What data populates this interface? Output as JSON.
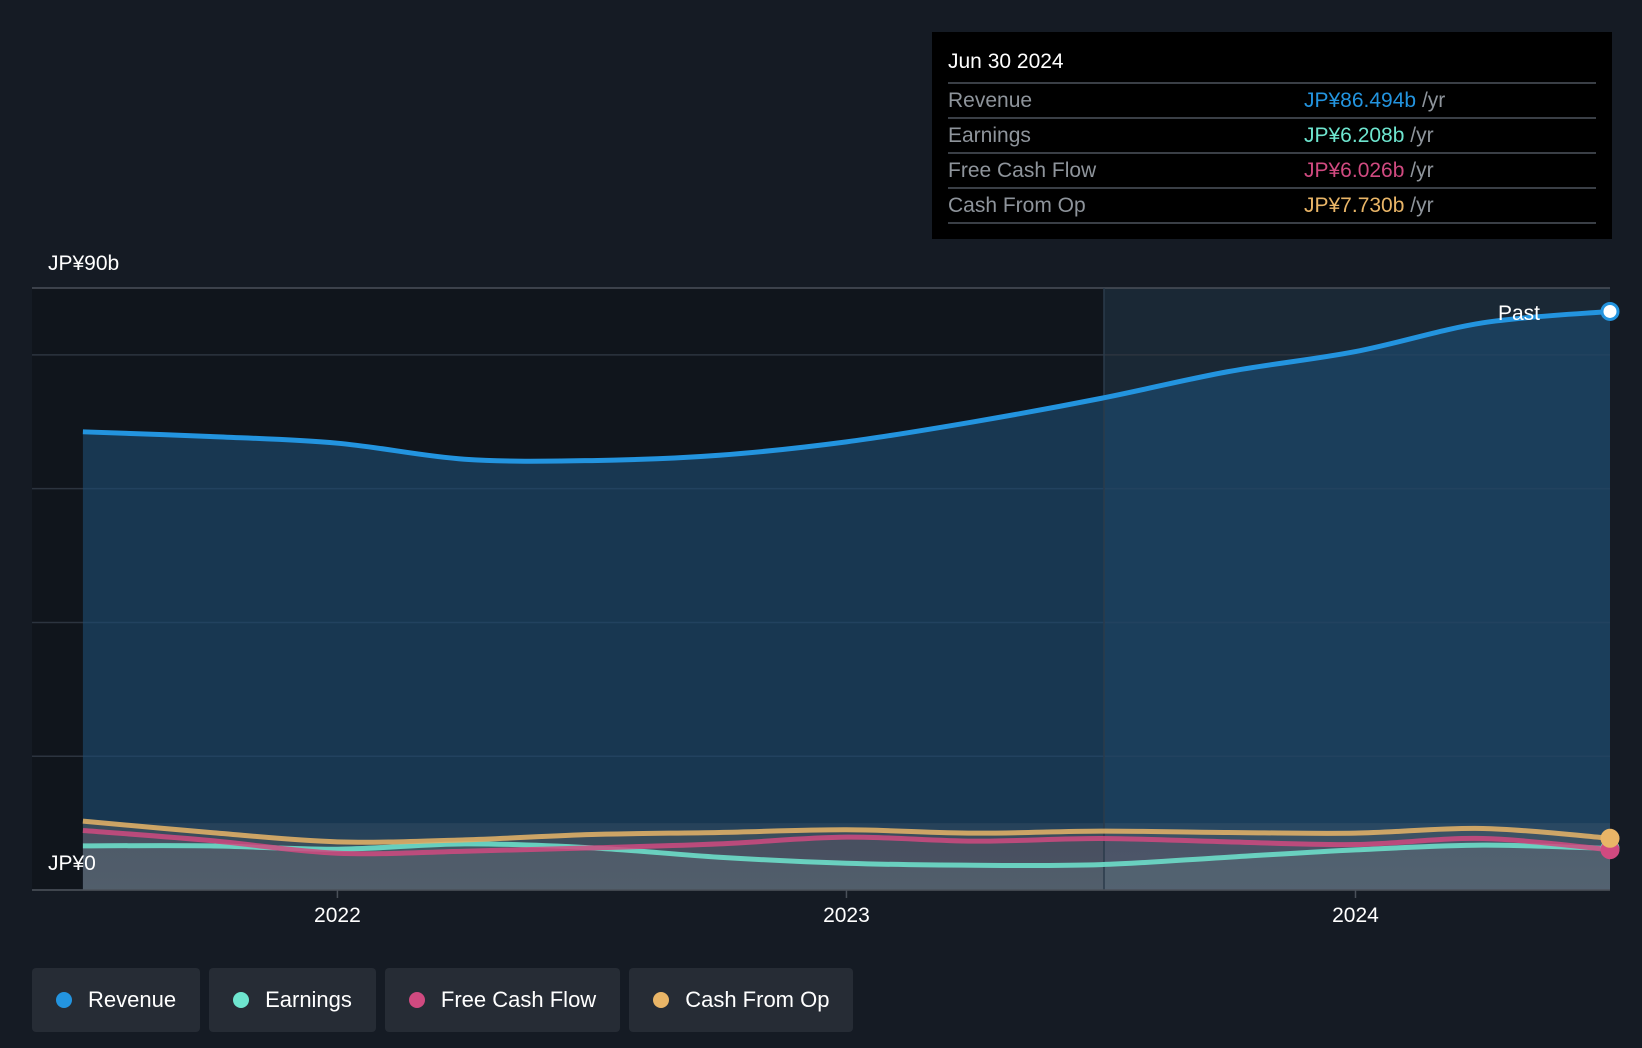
{
  "tooltip": {
    "date": "Jun 30 2024",
    "rows": [
      {
        "label": "Revenue",
        "value": "JP¥86.494b",
        "unit": "/yr",
        "color": "#2394df"
      },
      {
        "label": "Earnings",
        "value": "JP¥6.208b",
        "unit": "/yr",
        "color": "#6ee5cf"
      },
      {
        "label": "Free Cash Flow",
        "value": "JP¥6.026b",
        "unit": "/yr",
        "color": "#d04a80"
      },
      {
        "label": "Cash From Op",
        "value": "JP¥7.730b",
        "unit": "/yr",
        "color": "#e9b567"
      }
    ]
  },
  "past_label": "Past",
  "legend": [
    {
      "label": "Revenue",
      "color": "#2394df"
    },
    {
      "label": "Earnings",
      "color": "#6ee5cf"
    },
    {
      "label": "Free Cash Flow",
      "color": "#d04a80"
    },
    {
      "label": "Cash From Op",
      "color": "#e9b567"
    }
  ],
  "chart_data": {
    "type": "area",
    "ylim": [
      0,
      90
    ],
    "y_tick_labels": [
      "JP¥90b",
      "JP¥0"
    ],
    "x_tick_labels": [
      "2022",
      "2023",
      "2024"
    ],
    "x_ticks": [
      2022.0,
      2023.0,
      2024.0
    ],
    "x_range": [
      2021.4,
      2024.5
    ],
    "grid": true,
    "series": [
      {
        "name": "Revenue",
        "color": "#2394df",
        "x": [
          2021.5,
          2021.75,
          2022.0,
          2022.25,
          2022.5,
          2022.75,
          2023.0,
          2023.25,
          2023.5,
          2023.75,
          2024.0,
          2024.25,
          2024.5
        ],
        "y": [
          68.5,
          67.8,
          66.8,
          64.4,
          64.2,
          65.0,
          67.0,
          70.0,
          73.5,
          77.5,
          80.5,
          84.8,
          86.494
        ]
      },
      {
        "name": "Earnings",
        "color": "#6ee5cf",
        "x": [
          2021.5,
          2021.75,
          2022.0,
          2022.25,
          2022.5,
          2022.75,
          2023.0,
          2023.25,
          2023.5,
          2023.75,
          2024.0,
          2024.25,
          2024.5
        ],
        "y": [
          6.6,
          6.6,
          6.1,
          6.9,
          6.3,
          4.9,
          4.0,
          3.7,
          3.8,
          4.9,
          6.0,
          6.7,
          6.208
        ]
      },
      {
        "name": "Free Cash Flow",
        "color": "#d04a80",
        "x": [
          2021.5,
          2021.75,
          2022.0,
          2022.25,
          2022.5,
          2022.75,
          2023.0,
          2023.25,
          2023.5,
          2023.75,
          2024.0,
          2024.25,
          2024.5
        ],
        "y": [
          8.9,
          7.4,
          5.5,
          5.8,
          6.3,
          6.9,
          7.9,
          7.3,
          7.7,
          7.2,
          6.8,
          7.7,
          6.026
        ]
      },
      {
        "name": "Cash From Op",
        "color": "#e9b567",
        "x": [
          2021.5,
          2021.75,
          2022.0,
          2022.25,
          2022.5,
          2022.75,
          2023.0,
          2023.25,
          2023.5,
          2023.75,
          2024.0,
          2024.25,
          2024.5
        ],
        "y": [
          10.3,
          8.6,
          7.2,
          7.5,
          8.3,
          8.6,
          9.0,
          8.5,
          8.8,
          8.6,
          8.5,
          9.2,
          7.73
        ]
      }
    ]
  }
}
